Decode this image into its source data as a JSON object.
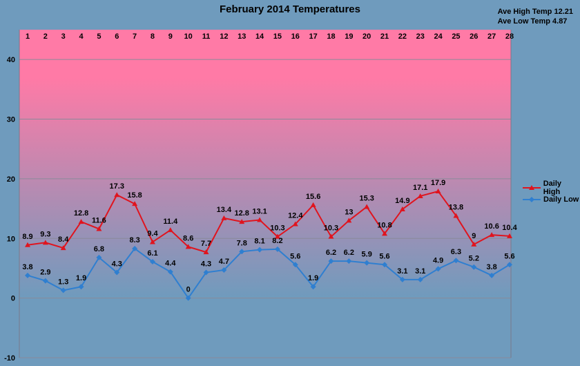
{
  "chart_data": {
    "type": "line",
    "title": "February 2014 Temperatures",
    "x": [
      1,
      2,
      3,
      4,
      5,
      6,
      7,
      8,
      9,
      10,
      11,
      12,
      13,
      14,
      15,
      16,
      17,
      18,
      19,
      20,
      21,
      22,
      23,
      24,
      25,
      26,
      27,
      28
    ],
    "xlabel": "",
    "ylabel": "",
    "ylim": [
      -10,
      45
    ],
    "yticks": [
      -10,
      0,
      10,
      20,
      30,
      40
    ],
    "x_axis_position": "top",
    "grid": true,
    "legend_position": "right",
    "series": [
      {
        "name": "Daily High",
        "color": "#e0141e",
        "marker": "triangle",
        "values": [
          8.9,
          9.3,
          8.4,
          12.8,
          11.6,
          17.3,
          15.8,
          9.4,
          11.4,
          8.6,
          7.7,
          13.4,
          12.8,
          13.1,
          10.3,
          12.4,
          15.6,
          10.3,
          13,
          15.3,
          10.8,
          14.9,
          17.1,
          17.9,
          13.8,
          9,
          10.6,
          10.4
        ],
        "labels": [
          "8.9",
          "9.3",
          "8.4",
          "12.8",
          "11.6",
          "17.3",
          "15.8",
          "9.4",
          "11.4",
          "8.6",
          "7.7",
          "13.4",
          "12.8",
          "13.1",
          "10.3",
          "12.4",
          "15.6",
          "10.3",
          "13",
          "15.3",
          "10.8",
          "14.9",
          "17.1",
          "17.9",
          "13.8",
          "9",
          "10.6",
          "10.4"
        ]
      },
      {
        "name": "Daily Low",
        "color": "#2f7fd0",
        "marker": "diamond",
        "values": [
          3.8,
          2.9,
          1.3,
          1.9,
          6.8,
          4.3,
          8.3,
          6.1,
          4.4,
          0,
          4.3,
          4.7,
          7.8,
          8.1,
          8.2,
          5.6,
          1.9,
          6.2,
          6.2,
          5.9,
          5.6,
          3.1,
          3.1,
          4.9,
          6.3,
          5.2,
          3.8,
          5.6
        ],
        "labels": [
          "3.8",
          "2.9",
          "1.3",
          "1.9",
          "6.8",
          "4.3",
          "8.3",
          "6.1",
          "4.4",
          "0",
          "4.3",
          "4.7",
          "7.8",
          "8.1",
          "8.2",
          "5.6",
          "1.9",
          "6.2",
          "6.2",
          "5.9",
          "5.6",
          "3.1",
          "3.1",
          "4.9",
          "6.3",
          "5.2",
          "3.8",
          "5.6"
        ]
      }
    ]
  },
  "stats": {
    "ave_high": "Ave High Temp 12.21",
    "ave_low": "Ave Low Temp 4.87"
  },
  "colors": {
    "band_hot": "#ff7aa6",
    "band_cool": "#6f9bbd",
    "background": "#6f9bbd"
  }
}
